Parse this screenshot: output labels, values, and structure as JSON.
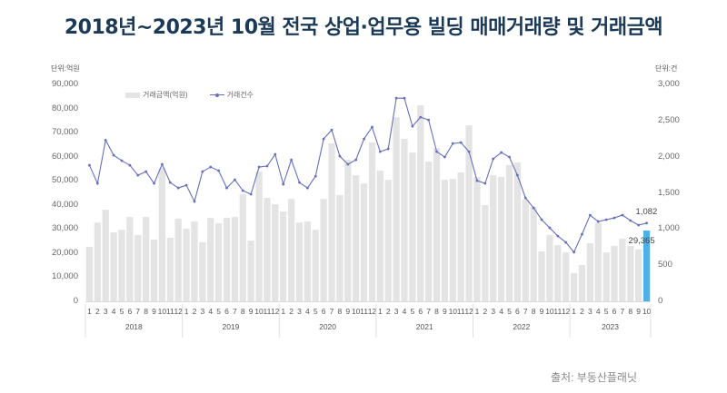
{
  "title": "2018년~2023년 10월 전국 상업·업무용 빌딩 매매거래량 및 거래금액",
  "source": "출처: 부동산플래닛",
  "chart_data": {
    "type": "bar+line",
    "title": "2018년~2023년 10월 전국 상업·업무용 빌딩 매매거래량 및 거래금액",
    "left_unit": "단위:억원",
    "right_unit": "단위:건",
    "left_ticks": [
      "90,000",
      "80,000",
      "70,000",
      "60,000",
      "50,000",
      "40,000",
      "30,000",
      "20,000",
      "10,000",
      "0"
    ],
    "right_ticks": [
      "3,000",
      "2,500",
      "2,000",
      "1,500",
      "1,000",
      "500",
      "0"
    ],
    "left_ylim": [
      0,
      90000
    ],
    "right_ylim": [
      0,
      3000
    ],
    "legend": [
      {
        "name": "거래금액(억원)",
        "kind": "bar",
        "color": "#e4e4e4"
      },
      {
        "name": "거래건수",
        "kind": "line",
        "color": "#6670b8"
      }
    ],
    "years": [
      "2018",
      "2019",
      "2020",
      "2021",
      "2022",
      "2023"
    ],
    "month_labels": [
      "1",
      "2",
      "3",
      "4",
      "5",
      "6",
      "7",
      "8",
      "9",
      "10",
      "11",
      "12"
    ],
    "highlight_color": "#4db0e8",
    "annotations": {
      "last_amount": "29,365",
      "last_count": "1,082"
    },
    "series": [
      {
        "name": "거래금액(억원)",
        "axis": "left",
        "values": [
          22600,
          32700,
          38000,
          28600,
          29700,
          35000,
          27500,
          35000,
          25600,
          55300,
          26400,
          34300,
          30100,
          33100,
          24500,
          34600,
          32400,
          34600,
          35000,
          44400,
          25200,
          53800,
          42900,
          40300,
          37300,
          42500,
          32700,
          33100,
          29700,
          42500,
          65500,
          44100,
          58700,
          52300,
          48900,
          65900,
          54200,
          50400,
          76400,
          67400,
          61700,
          81300,
          58000,
          63600,
          50400,
          50800,
          53500,
          73000,
          51600,
          39900,
          52300,
          51600,
          56500,
          57600,
          42200,
          39200,
          20700,
          27500,
          23300,
          20300,
          11700,
          15100,
          24100,
          32700,
          20300,
          23000,
          26000,
          23000,
          21500,
          29365
        ]
      },
      {
        "name": "거래건수",
        "axis": "right",
        "values": [
          1882,
          1631,
          2230,
          2020,
          1945,
          1882,
          1744,
          1794,
          1631,
          1895,
          1644,
          1568,
          1606,
          1380,
          1794,
          1857,
          1807,
          1568,
          1681,
          1531,
          1481,
          1857,
          1870,
          2033,
          1619,
          1957,
          1644,
          1568,
          1731,
          2246,
          2371,
          2008,
          1895,
          1957,
          2246,
          2409,
          2070,
          2108,
          2810,
          2810,
          2421,
          2547,
          2509,
          2070,
          1995,
          2183,
          2196,
          2070,
          1669,
          1631,
          1970,
          2058,
          1995,
          1744,
          1430,
          1292,
          1130,
          1016,
          903,
          815,
          680,
          928,
          1192,
          1104,
          1129,
          1154,
          1192,
          1117,
          1054,
          1082
        ]
      }
    ]
  }
}
